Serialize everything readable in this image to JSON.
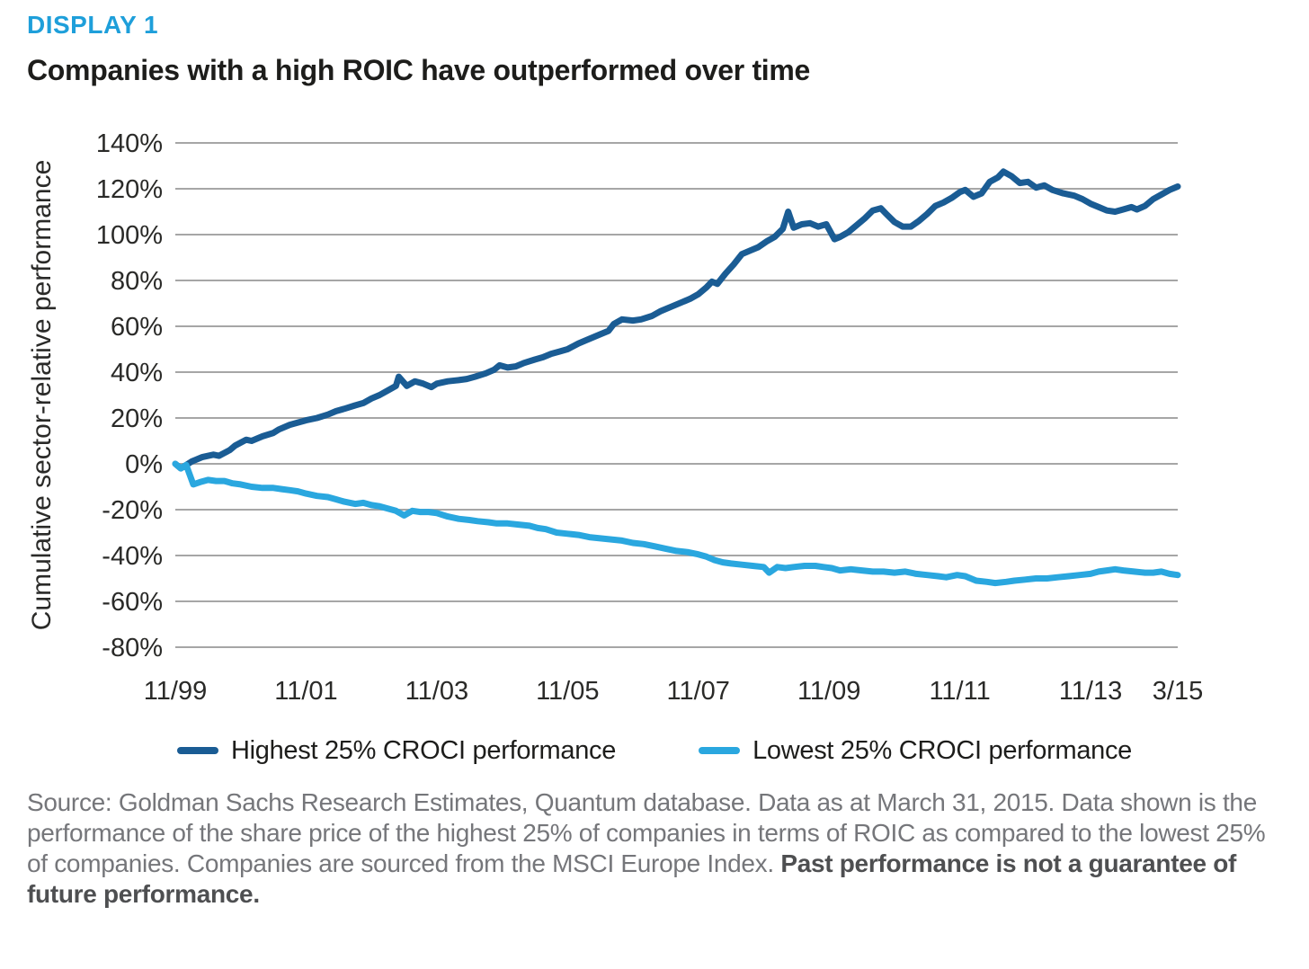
{
  "display_label": "DISPLAY 1",
  "title": "Companies with a high ROIC have outperformed over time",
  "colors": {
    "accent_cyan": "#1E9FDA",
    "dark_blue": "#1A5C94",
    "light_blue": "#2AA7DF",
    "gridline": "#A6A6A6",
    "text_dark": "#1D1D1B",
    "text_gray": "#75767A"
  },
  "chart_data": {
    "type": "line",
    "title": "Companies with a high ROIC have outperformed over time",
    "xlabel": "",
    "ylabel": "Cumulative sector-relative performance",
    "x_unit": "months since Nov 1999",
    "xlim": [
      0,
      184
    ],
    "ylim": [
      -80,
      140
    ],
    "grid": "horizontal",
    "legend_position": "bottom",
    "y_ticks": [
      140,
      120,
      100,
      80,
      60,
      40,
      20,
      0,
      -20,
      -40,
      -60,
      -80
    ],
    "y_tick_suffix": "%",
    "x_ticks": [
      {
        "m": 0,
        "label": "11/99"
      },
      {
        "m": 24,
        "label": "11/01"
      },
      {
        "m": 48,
        "label": "11/03"
      },
      {
        "m": 72,
        "label": "11/05"
      },
      {
        "m": 96,
        "label": "11/07"
      },
      {
        "m": 120,
        "label": "11/09"
      },
      {
        "m": 144,
        "label": "11/11"
      },
      {
        "m": 168,
        "label": "11/13"
      },
      {
        "m": 184,
        "label": "3/15"
      }
    ],
    "series": [
      {
        "name": "Highest 25% CROCI performance",
        "color": "#1A5C94",
        "points": [
          [
            0,
            0
          ],
          [
            1,
            -2
          ],
          [
            2,
            -0.5
          ],
          [
            3,
            1
          ],
          [
            5,
            3
          ],
          [
            7,
            4
          ],
          [
            8,
            3.5
          ],
          [
            10,
            6
          ],
          [
            11,
            8
          ],
          [
            13,
            10.5
          ],
          [
            14,
            10
          ],
          [
            16,
            12
          ],
          [
            18,
            13.5
          ],
          [
            19,
            15
          ],
          [
            21,
            17
          ],
          [
            22.5,
            18
          ],
          [
            24,
            19
          ],
          [
            26,
            20
          ],
          [
            28,
            21.5
          ],
          [
            29.5,
            23
          ],
          [
            31,
            24
          ],
          [
            33,
            25.5
          ],
          [
            34.5,
            26.5
          ],
          [
            36,
            28.5
          ],
          [
            37.5,
            30
          ],
          [
            39,
            32
          ],
          [
            40.5,
            34
          ],
          [
            41,
            38
          ],
          [
            42.5,
            34
          ],
          [
            44,
            36
          ],
          [
            45.5,
            35
          ],
          [
            47,
            33.5
          ],
          [
            48,
            35
          ],
          [
            50,
            36
          ],
          [
            52,
            36.5
          ],
          [
            53.5,
            37
          ],
          [
            55,
            38
          ],
          [
            57,
            39.5
          ],
          [
            58.5,
            41
          ],
          [
            59.5,
            43
          ],
          [
            61,
            42
          ],
          [
            62.5,
            42.5
          ],
          [
            64,
            44
          ],
          [
            66,
            45.5
          ],
          [
            67.5,
            46.5
          ],
          [
            69,
            48
          ],
          [
            70.5,
            49
          ],
          [
            72,
            50
          ],
          [
            74,
            52.5
          ],
          [
            76,
            54.5
          ],
          [
            78,
            56.5
          ],
          [
            79.5,
            58
          ],
          [
            80.5,
            61
          ],
          [
            82,
            63
          ],
          [
            84,
            62.5
          ],
          [
            85.5,
            63
          ],
          [
            87.5,
            64.5
          ],
          [
            89,
            66.5
          ],
          [
            91,
            68.5
          ],
          [
            93,
            70.5
          ],
          [
            94.5,
            72
          ],
          [
            96,
            74
          ],
          [
            97.5,
            77
          ],
          [
            98.5,
            79.5
          ],
          [
            99.5,
            78.5
          ],
          [
            101,
            83
          ],
          [
            102.5,
            87
          ],
          [
            104,
            91.5
          ],
          [
            105.5,
            93
          ],
          [
            107,
            94.5
          ],
          [
            108.5,
            97
          ],
          [
            110,
            99
          ],
          [
            111.5,
            102.5
          ],
          [
            112.5,
            110
          ],
          [
            113.5,
            103
          ],
          [
            115,
            104.5
          ],
          [
            116.5,
            105
          ],
          [
            118,
            103.5
          ],
          [
            119.5,
            104.5
          ],
          [
            121,
            98
          ],
          [
            122,
            99
          ],
          [
            123.5,
            101
          ],
          [
            125,
            104
          ],
          [
            126.5,
            107
          ],
          [
            128,
            110.5
          ],
          [
            129.5,
            111.5
          ],
          [
            130.5,
            109
          ],
          [
            132,
            105.5
          ],
          [
            133.5,
            103.5
          ],
          [
            135,
            103.5
          ],
          [
            136.5,
            106
          ],
          [
            138,
            109
          ],
          [
            139.5,
            112.5
          ],
          [
            141,
            114
          ],
          [
            142.5,
            116
          ],
          [
            144,
            118.5
          ],
          [
            145,
            119.5
          ],
          [
            146.5,
            116.5
          ],
          [
            148,
            118
          ],
          [
            149.5,
            123
          ],
          [
            151,
            125
          ],
          [
            152,
            127.5
          ],
          [
            153.5,
            125.5
          ],
          [
            155,
            122.5
          ],
          [
            156.5,
            123
          ],
          [
            158,
            120.5
          ],
          [
            159.5,
            121.5
          ],
          [
            161,
            119.5
          ],
          [
            163,
            118
          ],
          [
            165,
            117
          ],
          [
            166.5,
            115.5
          ],
          [
            168,
            113.5
          ],
          [
            169.5,
            112
          ],
          [
            171,
            110.5
          ],
          [
            172.5,
            110
          ],
          [
            174,
            111
          ],
          [
            175.5,
            112
          ],
          [
            176.5,
            111
          ],
          [
            178,
            112.5
          ],
          [
            179.5,
            115.5
          ],
          [
            181,
            117.5
          ],
          [
            182.5,
            119.5
          ],
          [
            184,
            121
          ]
        ]
      },
      {
        "name": "Lowest 25% CROCI performance",
        "color": "#2AA7DF",
        "points": [
          [
            0,
            0
          ],
          [
            1,
            -2
          ],
          [
            2,
            -0.5
          ],
          [
            3.3,
            -9
          ],
          [
            4.5,
            -8
          ],
          [
            6,
            -7
          ],
          [
            7.5,
            -7.5
          ],
          [
            9,
            -7.5
          ],
          [
            10.5,
            -8.5
          ],
          [
            12,
            -9
          ],
          [
            14,
            -10
          ],
          [
            16,
            -10.5
          ],
          [
            18,
            -10.5
          ],
          [
            19.5,
            -11
          ],
          [
            21,
            -11.5
          ],
          [
            22.5,
            -12
          ],
          [
            24,
            -13
          ],
          [
            26,
            -14
          ],
          [
            28,
            -14.5
          ],
          [
            29.5,
            -15.5
          ],
          [
            31,
            -16.5
          ],
          [
            33,
            -17.5
          ],
          [
            34.5,
            -17
          ],
          [
            36,
            -18
          ],
          [
            37.5,
            -18.5
          ],
          [
            39,
            -19.5
          ],
          [
            40.5,
            -20.5
          ],
          [
            42,
            -22.5
          ],
          [
            43.5,
            -20.5
          ],
          [
            45,
            -21
          ],
          [
            46.5,
            -21
          ],
          [
            48,
            -21.5
          ],
          [
            50,
            -23
          ],
          [
            52,
            -24
          ],
          [
            54,
            -24.5
          ],
          [
            55.5,
            -25
          ],
          [
            57.5,
            -25.5
          ],
          [
            59,
            -26
          ],
          [
            61,
            -26
          ],
          [
            63,
            -26.5
          ],
          [
            65,
            -27
          ],
          [
            66.5,
            -28
          ],
          [
            68,
            -28.5
          ],
          [
            70,
            -30
          ],
          [
            72,
            -30.5
          ],
          [
            74,
            -31
          ],
          [
            76,
            -32
          ],
          [
            78,
            -32.5
          ],
          [
            80,
            -33
          ],
          [
            82,
            -33.5
          ],
          [
            84,
            -34.5
          ],
          [
            86,
            -35
          ],
          [
            88,
            -36
          ],
          [
            90,
            -37
          ],
          [
            92,
            -38
          ],
          [
            94,
            -38.5
          ],
          [
            96,
            -39.5
          ],
          [
            97.5,
            -40.5
          ],
          [
            99,
            -42
          ],
          [
            100.5,
            -43
          ],
          [
            102,
            -43.5
          ],
          [
            104,
            -44
          ],
          [
            106,
            -44.5
          ],
          [
            108,
            -45
          ],
          [
            109,
            -47.5
          ],
          [
            110.5,
            -45
          ],
          [
            112,
            -45.5
          ],
          [
            113.5,
            -45
          ],
          [
            115.5,
            -44.5
          ],
          [
            117.5,
            -44.5
          ],
          [
            119,
            -45
          ],
          [
            120.5,
            -45.5
          ],
          [
            122,
            -46.5
          ],
          [
            124,
            -46
          ],
          [
            126,
            -46.5
          ],
          [
            128,
            -47
          ],
          [
            130,
            -47
          ],
          [
            132,
            -47.5
          ],
          [
            134,
            -47
          ],
          [
            136,
            -48
          ],
          [
            138,
            -48.5
          ],
          [
            140,
            -49
          ],
          [
            141.5,
            -49.5
          ],
          [
            143.5,
            -48.5
          ],
          [
            145,
            -49
          ],
          [
            147,
            -51
          ],
          [
            149,
            -51.5
          ],
          [
            150.5,
            -52
          ],
          [
            152.5,
            -51.5
          ],
          [
            154,
            -51
          ],
          [
            156,
            -50.5
          ],
          [
            158,
            -50
          ],
          [
            160,
            -50
          ],
          [
            162,
            -49.5
          ],
          [
            164,
            -49
          ],
          [
            166,
            -48.5
          ],
          [
            168,
            -48
          ],
          [
            169.5,
            -47
          ],
          [
            171,
            -46.5
          ],
          [
            172.5,
            -46
          ],
          [
            174,
            -46.5
          ],
          [
            176,
            -47
          ],
          [
            178,
            -47.5
          ],
          [
            179.5,
            -47.5
          ],
          [
            181,
            -47
          ],
          [
            182.5,
            -48
          ],
          [
            184,
            -48.5
          ]
        ]
      }
    ]
  },
  "source": {
    "text": "Source: Goldman Sachs Research Estimates, Quantum database. Data as at March 31, 2015. Data shown is the performance of the share price of the highest 25% of companies in terms of ROIC as compared to the lowest 25% of companies. Companies are sourced from the MSCI Europe Index. ",
    "bold_text": "Past performance is not a guarantee of future performance."
  }
}
